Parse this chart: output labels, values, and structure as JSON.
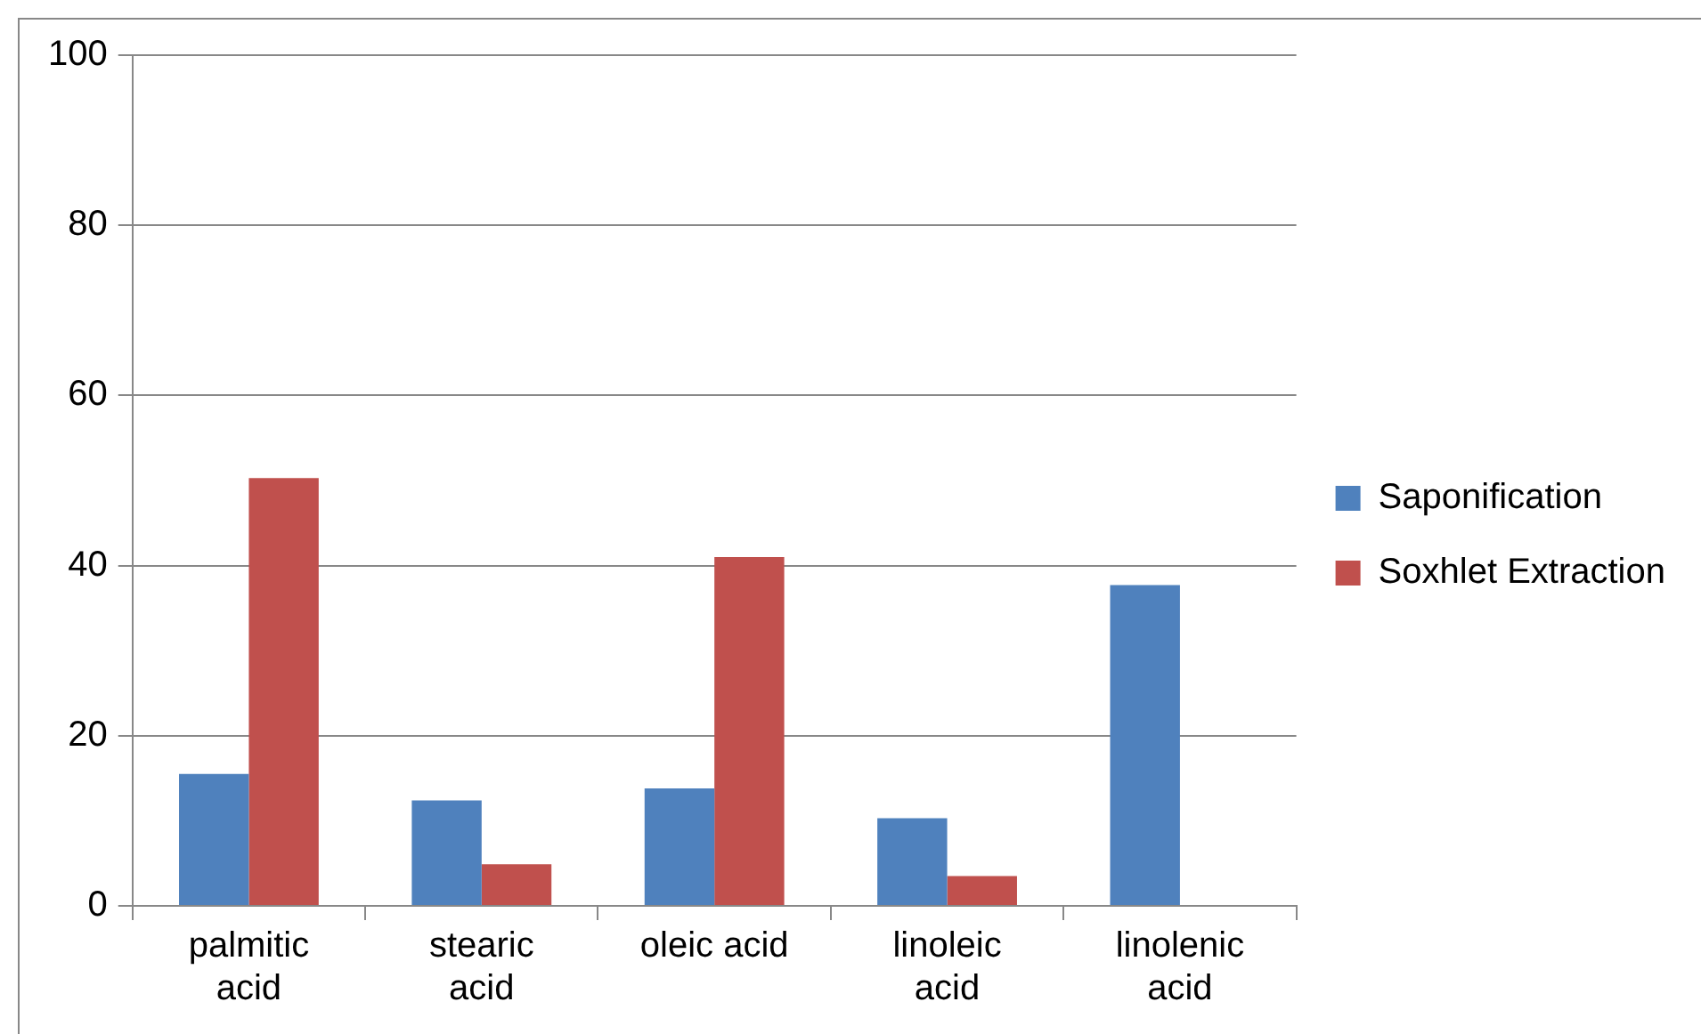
{
  "chart_data": {
    "type": "bar",
    "categories": [
      "palmitic acid",
      "stearic acid",
      "oleic acid",
      "linoleic acid",
      "linolenic acid"
    ],
    "series": [
      {
        "name": "Saponification",
        "color": "#4f81bd",
        "values": [
          15.5,
          12.4,
          13.8,
          10.3,
          37.7
        ]
      },
      {
        "name": "Soxhlet Extraction",
        "color": "#c0504d",
        "values": [
          50.3,
          4.9,
          41,
          3.5,
          0
        ]
      }
    ],
    "ylim": [
      0,
      100
    ],
    "yticks": [
      0,
      20,
      40,
      60,
      80,
      100
    ],
    "grid": "y",
    "legend": "right"
  }
}
